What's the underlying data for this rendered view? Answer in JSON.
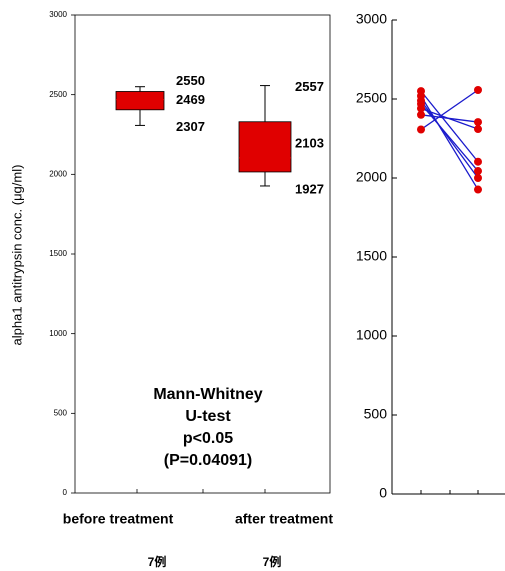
{
  "chart_data": [
    {
      "type": "box",
      "y_label": "alpha1 antitrypsin conc. (μg/ml)",
      "categories": [
        "before treatment",
        "after treatment"
      ],
      "counts": [
        "7例",
        "7例"
      ],
      "boxes": [
        {
          "min": 2307,
          "q1": 2405,
          "median": 2469,
          "q3": 2520,
          "max": 2550
        },
        {
          "min": 1927,
          "q1": 2015,
          "median": 2103,
          "q3": 2330,
          "max": 2557
        }
      ],
      "color": "#e00000",
      "annotation": [
        "Mann-Whitney",
        "U-test",
        "p<0.05",
        "(P=0.04091)"
      ],
      "ylim": [
        0,
        3000
      ],
      "yticks": [
        0,
        500,
        1000,
        1500,
        2000,
        2500,
        3000
      ]
    },
    {
      "type": "line",
      "categories": [
        null,
        null
      ],
      "line_color": "#1a1acc",
      "marker_color": "#e00000",
      "series": [
        {
          "values": [
            2550,
            2103
          ]
        },
        {
          "values": [
            2519,
            1927
          ]
        },
        {
          "values": [
            2490,
            2000
          ]
        },
        {
          "values": [
            2469,
            2044
          ]
        },
        {
          "values": [
            2440,
            2310
          ]
        },
        {
          "values": [
            2400,
            2354
          ]
        },
        {
          "values": [
            2307,
            2557
          ]
        }
      ],
      "ylim": [
        0,
        3000
      ],
      "yticks": [
        0,
        500,
        1000,
        1500,
        2000,
        2500,
        3000
      ]
    }
  ]
}
